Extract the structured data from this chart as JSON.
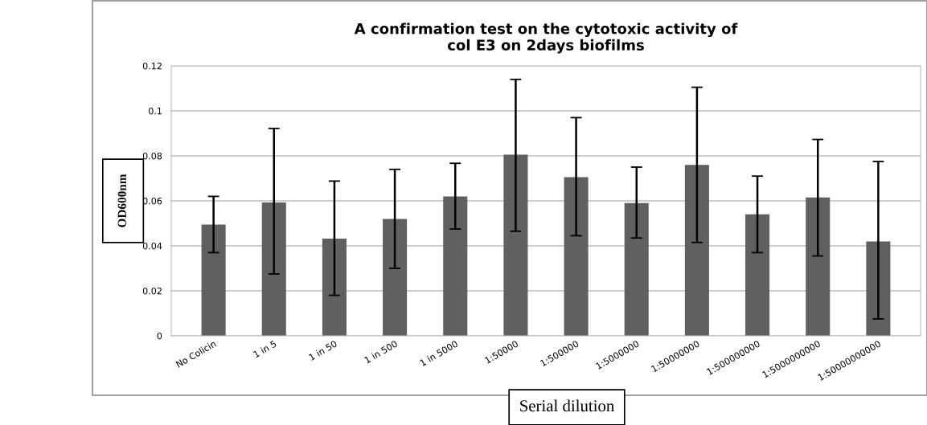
{
  "chart_data": {
    "type": "bar",
    "title": "A confirmation test on the cytotoxic activity of\ncol E3 on 2days biofilms",
    "xlabel": "Serial dilution",
    "ylabel": "OD600nm",
    "categories": [
      "No Colicin",
      "1 in 5",
      "1 in 50",
      "1 in 500",
      "1 in 5000",
      "1:50000",
      "1:500000",
      "1:5000000",
      "1:50000000",
      "1:500000000",
      "1:5000000000",
      "1:50000000000"
    ],
    "series": [
      {
        "color": "#606060",
        "values": [
          0.0495,
          0.0593,
          0.0432,
          0.052,
          0.062,
          0.0805,
          0.0705,
          0.059,
          0.076,
          0.054,
          0.0615,
          0.042
        ],
        "errors": [
          [
            0.037,
            0.062
          ],
          [
            0.0275,
            0.0922
          ],
          [
            0.018,
            0.0688
          ],
          [
            0.03,
            0.074
          ],
          [
            0.0475,
            0.0767
          ],
          [
            0.0465,
            0.114
          ],
          [
            0.0445,
            0.097
          ],
          [
            0.0435,
            0.075
          ],
          [
            0.0415,
            0.1105
          ],
          [
            0.037,
            0.071
          ],
          [
            0.0355,
            0.0873
          ],
          [
            0.0075,
            0.0775
          ]
        ]
      }
    ],
    "ylim": [
      0,
      0.12
    ],
    "yticks": [
      0,
      0.02,
      0.04,
      0.06,
      0.08,
      0.1,
      0.12
    ],
    "grid": "y"
  }
}
